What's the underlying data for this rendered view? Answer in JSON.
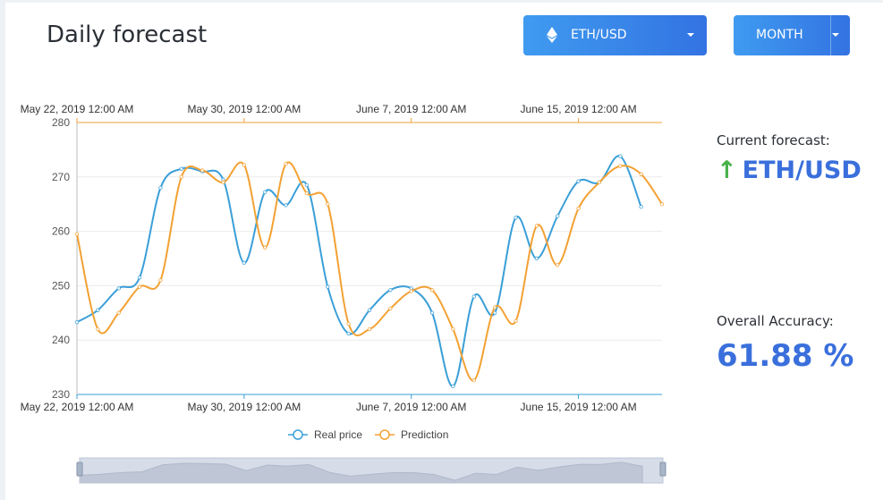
{
  "header": {
    "title": "Daily forecast"
  },
  "pair_select": {
    "label": "ETH/USD",
    "icon": "ethereum-icon"
  },
  "range_select": {
    "label": "MONTH"
  },
  "side": {
    "forecast_label": "Current forecast:",
    "forecast_value": "ETH/USD",
    "forecast_direction": "up",
    "accuracy_label": "Overall Accuracy:",
    "accuracy_value": "61.88 %"
  },
  "colors": {
    "real": "#3a9fd8",
    "prediction": "#f3a133",
    "accent": "#3a6fdc",
    "up": "#47b14a"
  },
  "chart_data": {
    "type": "line",
    "x_tick_labels": [
      "May 22, 2019 12:00 AM",
      "May 30, 2019 12:00 AM",
      "June 7, 2019 12:00 AM",
      "June 15, 2019 12:00 AM"
    ],
    "x_ticks": [
      0,
      8,
      16,
      24
    ],
    "ylim": [
      230,
      280
    ],
    "y_ticks": [
      230,
      240,
      250,
      260,
      270,
      280
    ],
    "xlim": [
      0,
      28
    ],
    "grid": true,
    "legend": "bottom-center",
    "series": [
      {
        "name": "Real price",
        "x": [
          0,
          1,
          2,
          3,
          4,
          5,
          6,
          7,
          8,
          9,
          10,
          11,
          12,
          13,
          14,
          15,
          16,
          17,
          18,
          19,
          20,
          21,
          22,
          23,
          24,
          25,
          26,
          27
        ],
        "values": [
          243.3,
          245.5,
          249.5,
          251.5,
          268,
          271.5,
          271,
          269.5,
          254.2,
          267.2,
          264.8,
          268.5,
          249.8,
          241.2,
          245.5,
          249.2,
          249.5,
          245,
          231.5,
          248,
          245,
          262.5,
          255,
          262.8,
          269.2,
          269,
          273.8,
          264.5
        ]
      },
      {
        "name": "Prediction",
        "x": [
          0,
          1,
          2,
          3,
          4,
          5,
          6,
          7,
          8,
          9,
          10,
          11,
          12,
          13,
          14,
          15,
          16,
          17,
          18,
          19,
          20,
          21,
          22,
          23,
          24,
          25,
          26,
          27,
          28
        ],
        "values": [
          259.5,
          242,
          245,
          249.8,
          251,
          270,
          271.2,
          269,
          272.2,
          257,
          272.4,
          267,
          265,
          243,
          242,
          245.8,
          249,
          249.2,
          242,
          232.6,
          246,
          243.5,
          261,
          253.8,
          264.2,
          269,
          272,
          270.5,
          265
        ]
      }
    ]
  }
}
